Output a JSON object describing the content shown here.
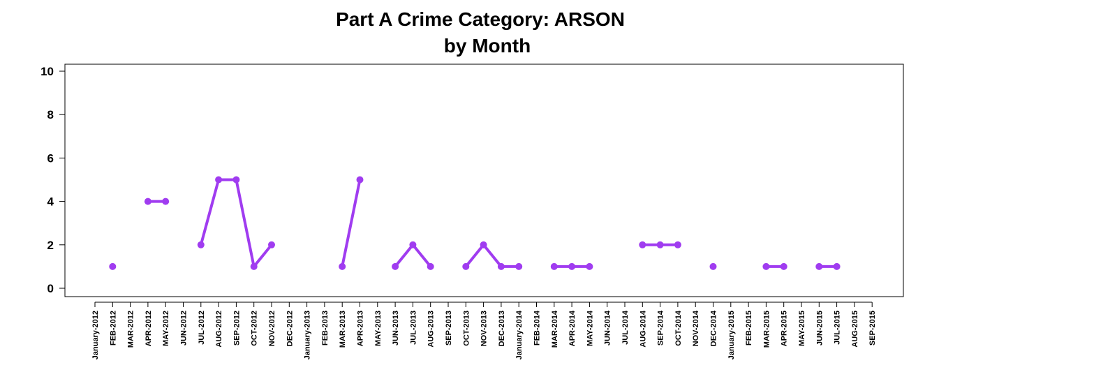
{
  "chart_data": {
    "type": "line",
    "title": "Part A Crime Category:  ARSON",
    "subtitle": "by Month",
    "xlabel": "",
    "ylabel": "",
    "ylim": [
      0,
      10
    ],
    "yticks": [
      0,
      2,
      4,
      6,
      8,
      10
    ],
    "grid": false,
    "line_color": "#a03cf0",
    "categories": [
      "January-2012",
      "FEB-2012",
      "MAR-2012",
      "APR-2012",
      "MAY-2012",
      "JUN-2012",
      "JUL-2012",
      "AUG-2012",
      "SEP-2012",
      "OCT-2012",
      "NOV-2012",
      "DEC-2012",
      "January-2013",
      "FEB-2013",
      "MAR-2013",
      "APR-2013",
      "MAY-2013",
      "JUN-2013",
      "JUL-2013",
      "AUG-2013",
      "SEP-2013",
      "OCT-2013",
      "NOV-2013",
      "DEC-2013",
      "January-2014",
      "FEB-2014",
      "MAR-2014",
      "APR-2014",
      "MAY-2014",
      "JUN-2014",
      "JUL-2014",
      "AUG-2014",
      "SEP-2014",
      "OCT-2014",
      "NOV-2014",
      "DEC-2014",
      "January-2015",
      "FEB-2015",
      "MAR-2015",
      "APR-2015",
      "MAY-2015",
      "JUN-2015",
      "JUL-2015",
      "AUG-2015",
      "SEP-2015"
    ],
    "series": [
      {
        "values": [
          null,
          1,
          null,
          4,
          4,
          null,
          2,
          5,
          5,
          1,
          2,
          null,
          null,
          null,
          1,
          5,
          null,
          1,
          2,
          1,
          null,
          1,
          2,
          1,
          1,
          null,
          1,
          1,
          1,
          null,
          null,
          2,
          2,
          2,
          null,
          1,
          null,
          null,
          1,
          1,
          null,
          1,
          1,
          null,
          null
        ]
      }
    ]
  }
}
